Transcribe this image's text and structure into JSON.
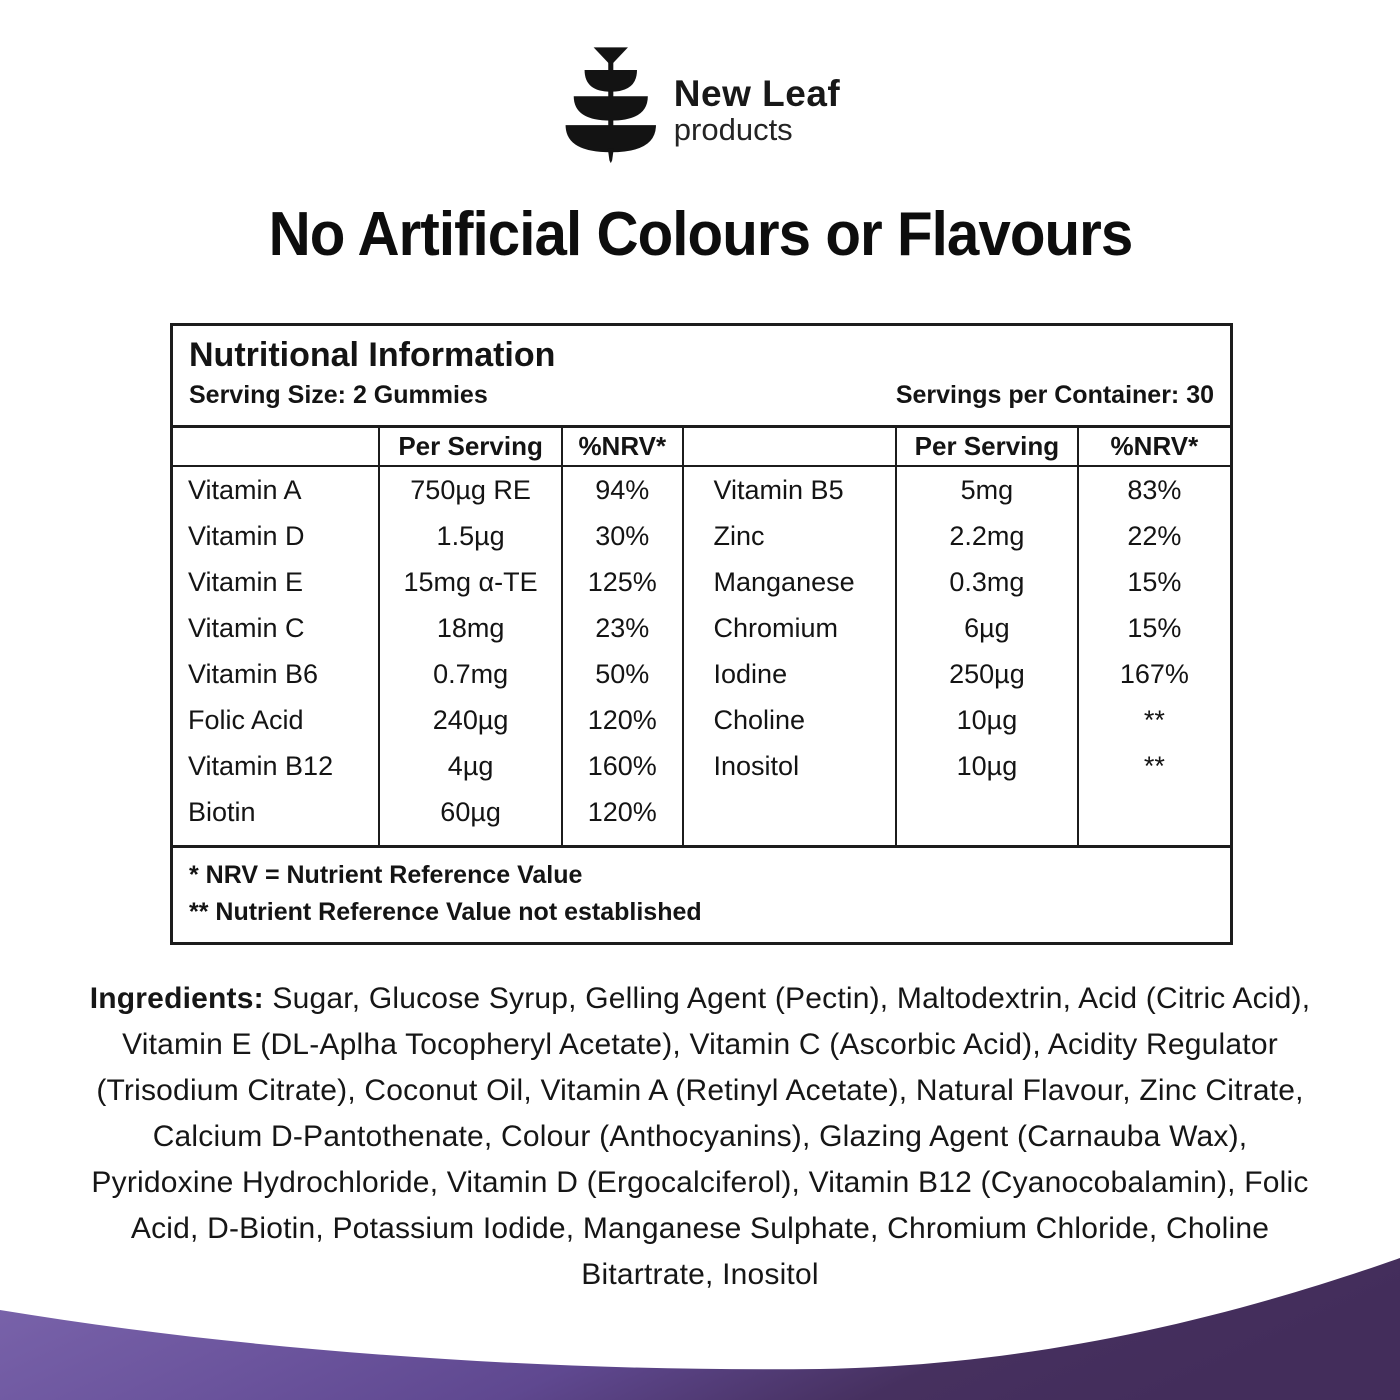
{
  "brand": {
    "name_line1": "New Leaf",
    "name_line2": "products",
    "logo_icon": "tiered-tree-icon"
  },
  "headline": "No Artificial Colours or Flavours",
  "nutrition": {
    "title": "Nutritional Information",
    "serving_size": "Serving Size: 2 Gummies",
    "servings_per_container": "Servings per Container: 30",
    "col_headers": {
      "per_serving": "Per Serving",
      "nrv": "%NRV*"
    },
    "left_rows": [
      [
        "Vitamin A",
        "750µg RE",
        "94%"
      ],
      [
        "Vitamin D",
        "1.5µg",
        "30%"
      ],
      [
        "Vitamin E",
        "15mg α-TE",
        "125%"
      ],
      [
        "Vitamin C",
        "18mg",
        "23%"
      ],
      [
        "Vitamin B6",
        "0.7mg",
        "50%"
      ],
      [
        "Folic Acid",
        "240µg",
        "120%"
      ],
      [
        "Vitamin B12",
        "4µg",
        "160%"
      ],
      [
        "Biotin",
        "60µg",
        "120%"
      ]
    ],
    "right_rows": [
      [
        "Vitamin B5",
        "5mg",
        "83%"
      ],
      [
        "Zinc",
        "2.2mg",
        "22%"
      ],
      [
        "Manganese",
        "0.3mg",
        "15%"
      ],
      [
        "Chromium",
        "6µg",
        "15%"
      ],
      [
        "Iodine",
        "250µg",
        "167%"
      ],
      [
        "Choline",
        "10µg",
        "**"
      ],
      [
        "Inositol",
        "10µg",
        "**"
      ],
      [
        "",
        "",
        ""
      ]
    ],
    "footnotes": [
      "* NRV = Nutrient Reference Value",
      "** Nutrient Reference Value not established"
    ]
  },
  "ingredients": {
    "label": "Ingredients:",
    "text": "Sugar, Glucose Syrup, Gelling Agent (Pectin), Maltodextrin, Acid (Citric Acid), Vitamin E (DL-Aplha Tocopheryl Acetate), Vitamin C (Ascorbic Acid), Acidity Regulator (Trisodium Citrate), Coconut Oil, Vitamin A (Retinyl Acetate), Natural Flavour, Zinc Citrate, Calcium D-Pantothenate, Colour (Anthocyanins), Glazing Agent (Carnauba Wax), Pyridoxine Hydrochloride, Vitamin D (Ergocalciferol), Vitamin B12 (Cyanocobalamin), Folic Acid, D-Biotin, Potassium Iodide, Manganese Sulphate, Chromium Chloride, Choline Bitartrate, Inositol"
  },
  "colors": {
    "text": "#141414",
    "border": "#1c1c1c",
    "wave_light": "#7c66ad",
    "wave_mid": "#5f4890",
    "wave_dark": "#46305f"
  }
}
